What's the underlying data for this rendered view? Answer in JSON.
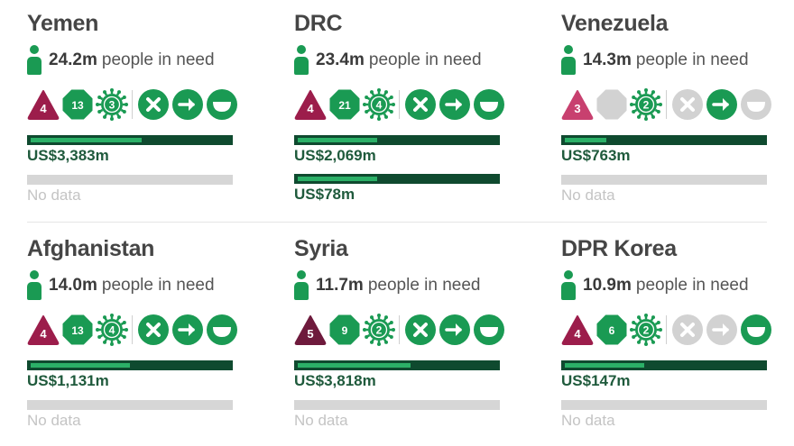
{
  "colors": {
    "accent_green": "#1a9a53",
    "bar_dark": "#0f4a2f",
    "bar_fill": "#2bb067",
    "triangle_red": "#9c1d4b",
    "triangle_pink": "#c8406f",
    "triangle_darkred": "#6e1a3c",
    "disabled_gray": "#d2d2d2",
    "nodata_gray": "#d6d6d6"
  },
  "cards": [
    {
      "country": "Yemen",
      "people_in_need": "24.2m",
      "need_label": "people in need",
      "triangle": "4",
      "triangle_color": "#9c1d4b",
      "octagon": "13",
      "octagon_active": true,
      "virus": "3",
      "icons_active": [
        true,
        true,
        true
      ],
      "funding": [
        {
          "label": "US$3,383m",
          "fill_fraction": 0.56
        }
      ],
      "no_data": "No data",
      "has_no_data": true
    },
    {
      "country": "DRC",
      "people_in_need": "23.4m",
      "need_label": "people in need",
      "triangle": "4",
      "triangle_color": "#9c1d4b",
      "octagon": "21",
      "octagon_active": true,
      "virus": "4",
      "icons_active": [
        true,
        true,
        true
      ],
      "funding": [
        {
          "label": "US$2,069m",
          "fill_fraction": 0.4
        },
        {
          "label": "US$78m",
          "fill_fraction": 0.4
        }
      ],
      "no_data": "",
      "has_no_data": false
    },
    {
      "country": "Venezuela",
      "people_in_need": "14.3m",
      "need_label": "people in need",
      "triangle": "3",
      "triangle_color": "#c8406f",
      "octagon": "",
      "octagon_active": false,
      "virus": "2",
      "icons_active": [
        false,
        true,
        false
      ],
      "funding": [
        {
          "label": "US$763m",
          "fill_fraction": 0.21
        }
      ],
      "no_data": "No data",
      "has_no_data": true
    },
    {
      "country": "Afghanistan",
      "people_in_need": "14.0m",
      "need_label": "people in need",
      "triangle": "4",
      "triangle_color": "#9c1d4b",
      "octagon": "13",
      "octagon_active": true,
      "virus": "4",
      "icons_active": [
        true,
        true,
        true
      ],
      "funding": [
        {
          "label": "US$1,131m",
          "fill_fraction": 0.5
        }
      ],
      "no_data": "No data",
      "has_no_data": true
    },
    {
      "country": "Syria",
      "people_in_need": "11.7m",
      "need_label": "people in need",
      "triangle": "5",
      "triangle_color": "#6e1a3c",
      "octagon": "9",
      "octagon_active": true,
      "virus": "2",
      "icons_active": [
        true,
        true,
        true
      ],
      "funding": [
        {
          "label": "US$3,818m",
          "fill_fraction": 0.57
        }
      ],
      "no_data": "No data",
      "has_no_data": true
    },
    {
      "country": "DPR Korea",
      "people_in_need": "10.9m",
      "need_label": "people in need",
      "triangle": "4",
      "triangle_color": "#9c1d4b",
      "octagon": "6",
      "octagon_active": true,
      "virus": "2",
      "icons_active": [
        false,
        false,
        true
      ],
      "funding": [
        {
          "label": "US$147m",
          "fill_fraction": 0.4
        }
      ],
      "no_data": "No data",
      "has_no_data": true
    }
  ]
}
